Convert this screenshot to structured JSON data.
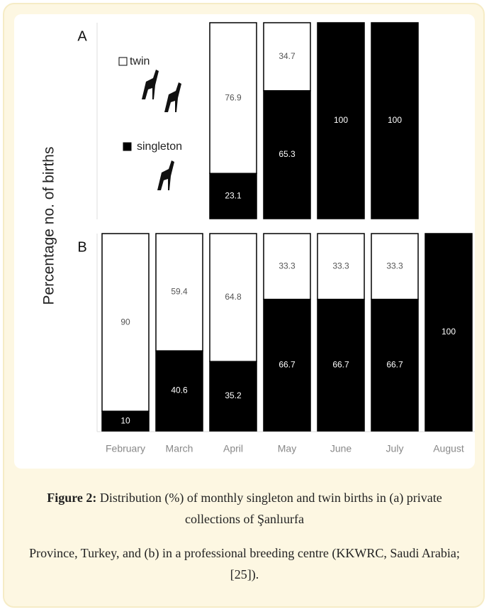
{
  "ylabel": "Percentage no. of births",
  "chart_data": [
    {
      "type": "bar",
      "panel": "A",
      "stacked": true,
      "ylim": [
        0,
        100
      ],
      "series": [
        {
          "name": "singleton",
          "color": "#000000",
          "values": [
            null,
            null,
            23.1,
            65.3,
            100,
            100,
            null
          ]
        },
        {
          "name": "twin",
          "color": "#ffffff",
          "values": [
            null,
            null,
            76.9,
            34.7,
            null,
            null,
            null
          ]
        }
      ]
    },
    {
      "type": "bar",
      "panel": "B",
      "stacked": true,
      "ylim": [
        0,
        100
      ],
      "categories": [
        "February",
        "March",
        "April",
        "May",
        "June",
        "July",
        "August"
      ],
      "series": [
        {
          "color": "#000000",
          "values": [
            10,
            40.6,
            35.2,
            66.7,
            66.7,
            66.7,
            100
          ]
        },
        {
          "color": "#ffffff",
          "values": [
            90,
            59.4,
            64.8,
            33.3,
            33.3,
            33.3,
            null
          ]
        }
      ]
    }
  ],
  "caption": {
    "label": "Figure 2:",
    "line1": "Distribution (%) of monthly singleton and twin births in (a) private collections of Şanlıurfa",
    "line2": "Province, Turkey, and (b) in a professional breeding centre (KKWRC, Saudi Arabia; [25])."
  }
}
